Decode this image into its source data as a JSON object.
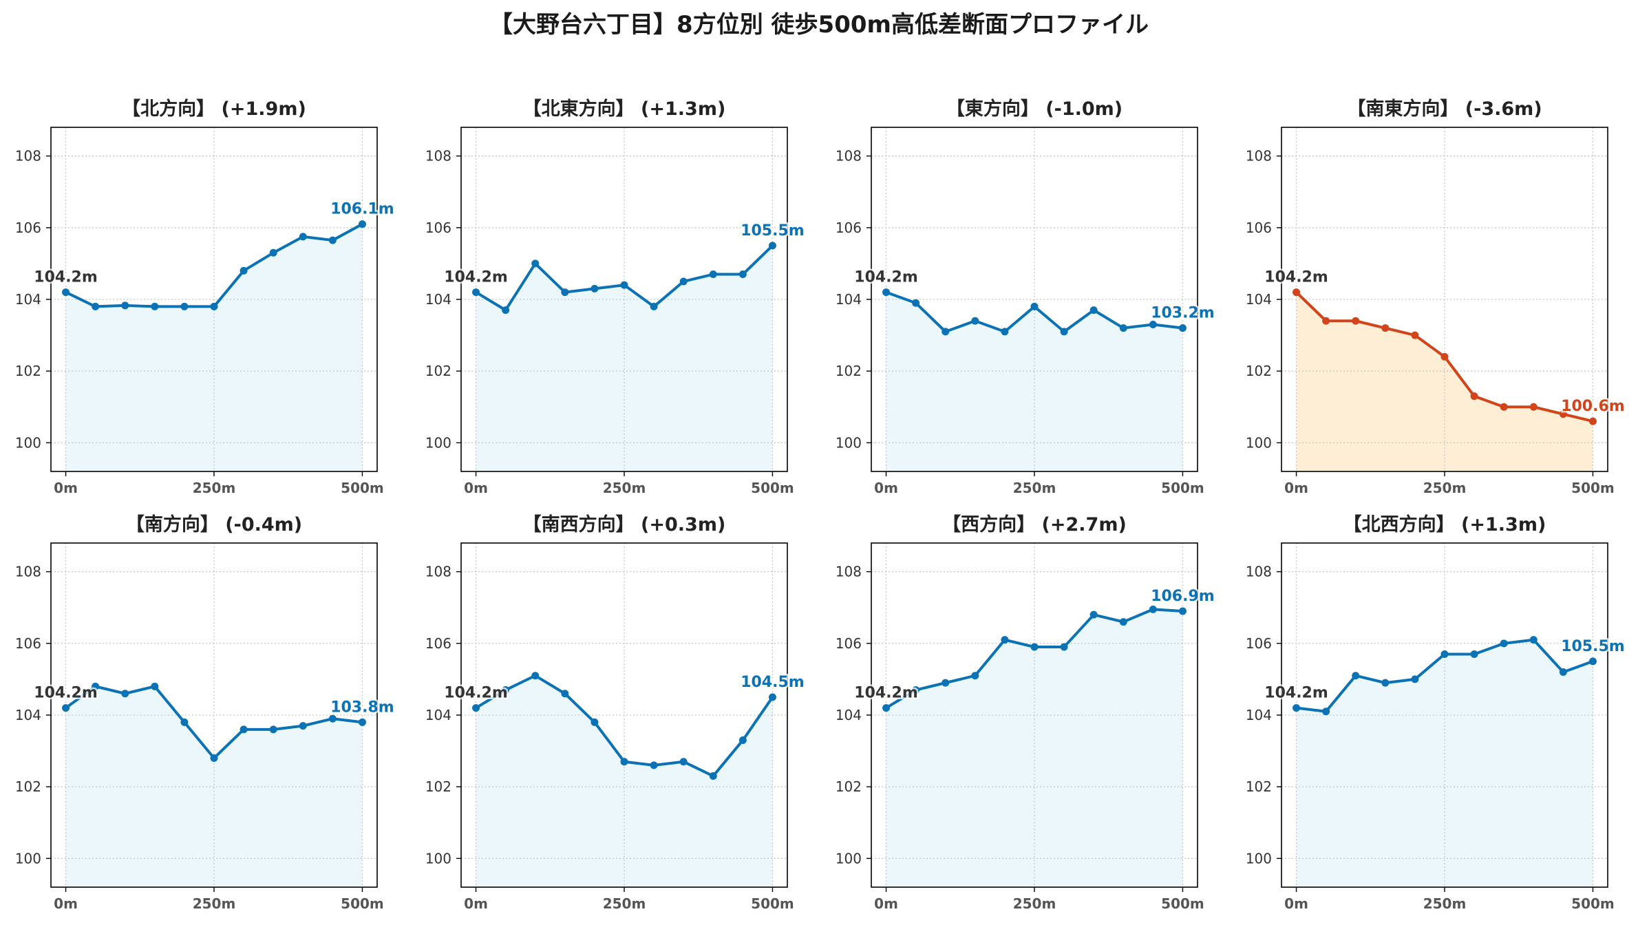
{
  "suptitle": "【大野台六丁目】8方位別 徒歩500m高低差断面プロファイル",
  "colors": {
    "up_line": "#0a72b5",
    "up_fill": "#ebf7fb",
    "down_line": "#d2441a",
    "down_fill": "#fdeed5",
    "start_label": "#333333",
    "grid": "#c8c8c8"
  },
  "chart_data": [
    {
      "type": "area",
      "title": "【北方向】 (+1.9m)",
      "style": "up",
      "x": [
        0,
        50,
        100,
        150,
        200,
        250,
        300,
        350,
        400,
        450,
        500
      ],
      "y": [
        104.2,
        103.8,
        103.83,
        103.8,
        103.8,
        103.8,
        104.8,
        105.3,
        105.75,
        105.65,
        106.1
      ],
      "start_label": "104.2m",
      "end_label": "106.1m",
      "xticks": [
        "0m",
        "250m",
        "500m"
      ],
      "yticks": [
        "100",
        "102",
        "104",
        "106",
        "108"
      ],
      "xlim": [
        -25,
        525
      ],
      "ylim": [
        99.2,
        108.8
      ],
      "grid": true
    },
    {
      "type": "area",
      "title": "【北東方向】 (+1.3m)",
      "style": "up",
      "x": [
        0,
        50,
        100,
        150,
        200,
        250,
        300,
        350,
        400,
        450,
        500
      ],
      "y": [
        104.2,
        103.7,
        105.0,
        104.2,
        104.3,
        104.4,
        103.8,
        104.5,
        104.7,
        104.7,
        105.5
      ],
      "start_label": "104.2m",
      "end_label": "105.5m",
      "xticks": [
        "0m",
        "250m",
        "500m"
      ],
      "yticks": [
        "100",
        "102",
        "104",
        "106",
        "108"
      ],
      "xlim": [
        -25,
        525
      ],
      "ylim": [
        99.2,
        108.8
      ],
      "grid": true
    },
    {
      "type": "area",
      "title": "【東方向】 (-1.0m)",
      "style": "up",
      "x": [
        0,
        50,
        100,
        150,
        200,
        250,
        300,
        350,
        400,
        450,
        500
      ],
      "y": [
        104.2,
        103.9,
        103.1,
        103.4,
        103.1,
        103.8,
        103.1,
        103.7,
        103.2,
        103.3,
        103.2
      ],
      "start_label": "104.2m",
      "end_label": "103.2m",
      "xticks": [
        "0m",
        "250m",
        "500m"
      ],
      "yticks": [
        "100",
        "102",
        "104",
        "106",
        "108"
      ],
      "xlim": [
        -25,
        525
      ],
      "ylim": [
        99.2,
        108.8
      ],
      "grid": true
    },
    {
      "type": "area",
      "title": "【南東方向】 (-3.6m)",
      "style": "down",
      "x": [
        0,
        50,
        100,
        150,
        200,
        250,
        300,
        350,
        400,
        450,
        500
      ],
      "y": [
        104.2,
        103.4,
        103.4,
        103.2,
        103.0,
        102.4,
        101.3,
        101.0,
        101.0,
        100.8,
        100.6
      ],
      "start_label": "104.2m",
      "end_label": "100.6m",
      "xticks": [
        "0m",
        "250m",
        "500m"
      ],
      "yticks": [
        "100",
        "102",
        "104",
        "106",
        "108"
      ],
      "xlim": [
        -25,
        525
      ],
      "ylim": [
        99.2,
        108.8
      ],
      "grid": true
    },
    {
      "type": "area",
      "title": "【南方向】 (-0.4m)",
      "style": "up",
      "x": [
        0,
        50,
        100,
        150,
        200,
        250,
        300,
        350,
        400,
        450,
        500
      ],
      "y": [
        104.2,
        104.8,
        104.6,
        104.8,
        103.8,
        102.8,
        103.6,
        103.6,
        103.7,
        103.9,
        103.8
      ],
      "start_label": "104.2m",
      "end_label": "103.8m",
      "xticks": [
        "0m",
        "250m",
        "500m"
      ],
      "yticks": [
        "100",
        "102",
        "104",
        "106",
        "108"
      ],
      "xlim": [
        -25,
        525
      ],
      "ylim": [
        99.2,
        108.8
      ],
      "grid": true
    },
    {
      "type": "area",
      "title": "【南西方向】 (+0.3m)",
      "style": "up",
      "x": [
        0,
        50,
        100,
        150,
        200,
        250,
        300,
        350,
        400,
        450,
        500
      ],
      "y": [
        104.2,
        104.7,
        105.1,
        104.6,
        103.8,
        102.7,
        102.6,
        102.7,
        102.3,
        103.3,
        104.5
      ],
      "start_label": "104.2m",
      "end_label": "104.5m",
      "xticks": [
        "0m",
        "250m",
        "500m"
      ],
      "yticks": [
        "100",
        "102",
        "104",
        "106",
        "108"
      ],
      "xlim": [
        -25,
        525
      ],
      "ylim": [
        99.2,
        108.8
      ],
      "grid": true
    },
    {
      "type": "area",
      "title": "【西方向】 (+2.7m)",
      "style": "up",
      "x": [
        0,
        50,
        100,
        150,
        200,
        250,
        300,
        350,
        400,
        450,
        500
      ],
      "y": [
        104.2,
        104.7,
        104.9,
        105.1,
        106.1,
        105.9,
        105.9,
        106.8,
        106.6,
        106.95,
        106.9
      ],
      "start_label": "104.2m",
      "end_label": "106.9m",
      "xticks": [
        "0m",
        "250m",
        "500m"
      ],
      "yticks": [
        "100",
        "102",
        "104",
        "106",
        "108"
      ],
      "xlim": [
        -25,
        525
      ],
      "ylim": [
        99.2,
        108.8
      ],
      "grid": true
    },
    {
      "type": "area",
      "title": "【北西方向】 (+1.3m)",
      "style": "up",
      "x": [
        0,
        50,
        100,
        150,
        200,
        250,
        300,
        350,
        400,
        450,
        500
      ],
      "y": [
        104.2,
        104.1,
        105.1,
        104.9,
        105.0,
        105.7,
        105.7,
        106.0,
        106.1,
        105.2,
        105.5
      ],
      "start_label": "104.2m",
      "end_label": "105.5m",
      "xticks": [
        "0m",
        "250m",
        "500m"
      ],
      "yticks": [
        "100",
        "102",
        "104",
        "106",
        "108"
      ],
      "xlim": [
        -25,
        525
      ],
      "ylim": [
        99.2,
        108.8
      ],
      "grid": true
    }
  ]
}
